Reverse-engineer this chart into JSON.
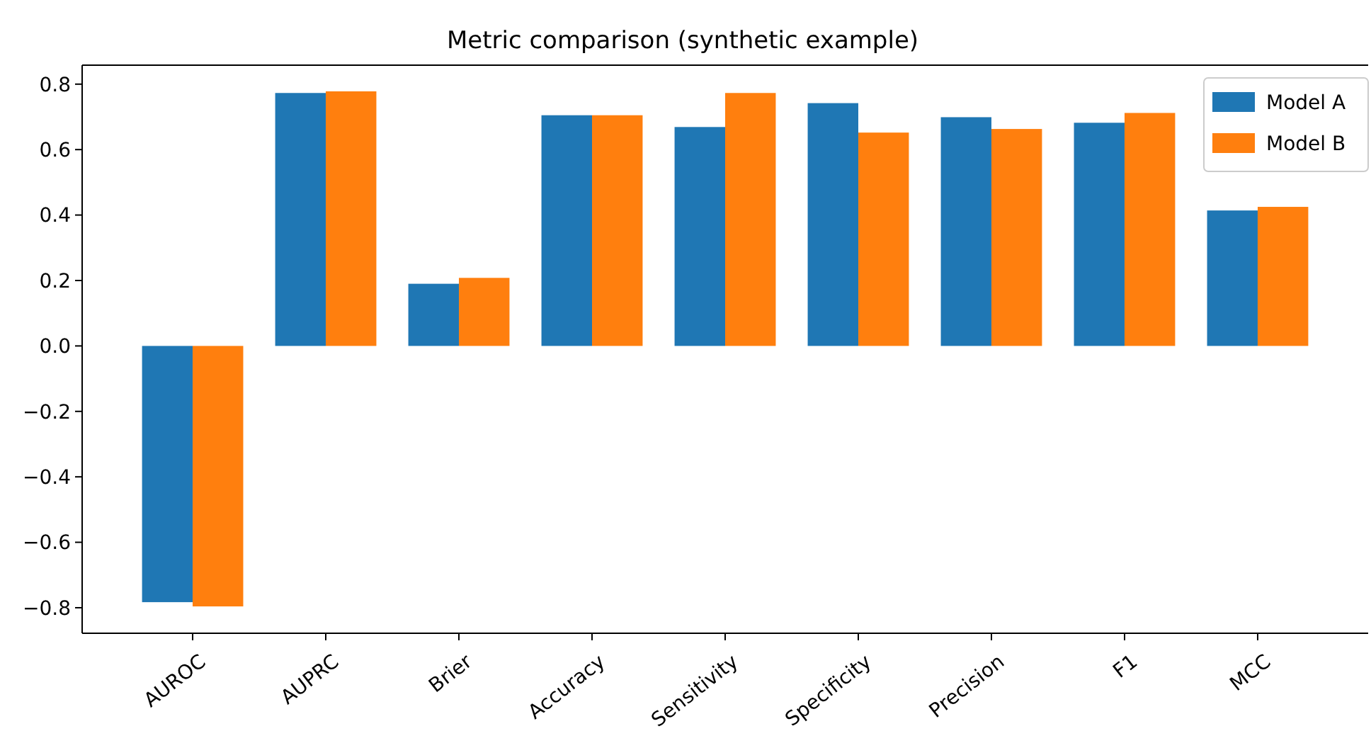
{
  "chart_data": {
    "type": "bar",
    "title": "Metric comparison (synthetic example)",
    "categories": [
      "AUROC",
      "AUPRC",
      "Brier",
      "Accuracy",
      "Sensitivity",
      "Specificity",
      "Precision",
      "F1",
      "MCC"
    ],
    "series": [
      {
        "name": "Model A",
        "color": "#1f77b4",
        "values": [
          -0.783,
          0.773,
          0.19,
          0.705,
          0.669,
          0.742,
          0.699,
          0.682,
          0.414
        ]
      },
      {
        "name": "Model B",
        "color": "#ff7f0e",
        "values": [
          -0.796,
          0.778,
          0.208,
          0.705,
          0.773,
          0.652,
          0.663,
          0.712,
          0.425
        ]
      }
    ],
    "ylim": [
      -0.878,
      0.858
    ],
    "yticks": [
      {
        "value": -0.8,
        "label": "−0.8"
      },
      {
        "value": -0.6,
        "label": "−0.6"
      },
      {
        "value": -0.4,
        "label": "−0.4"
      },
      {
        "value": -0.2,
        "label": "−0.2"
      },
      {
        "value": 0,
        "label": "0.0"
      },
      {
        "value": 0.2,
        "label": "0.2"
      },
      {
        "value": 0.4,
        "label": "0.4"
      },
      {
        "value": 0.6,
        "label": "0.6"
      },
      {
        "value": 0.8,
        "label": "0.8"
      }
    ],
    "grid": false,
    "legend": "top right"
  }
}
